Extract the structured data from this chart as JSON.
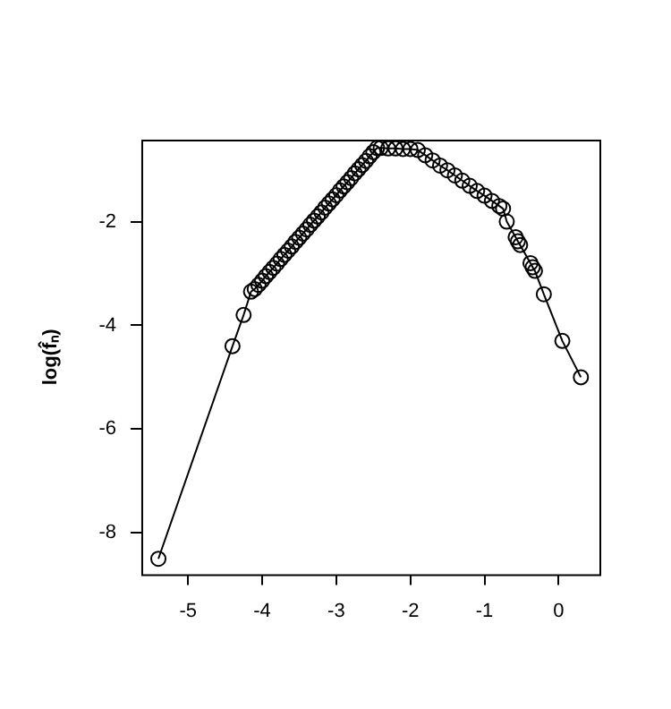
{
  "chart_data": {
    "type": "line",
    "ylabel": "log(f̂ₙ)",
    "marker": "circle",
    "line_style": "solid",
    "grid": false,
    "legend": false,
    "xlim": [
      -5.63,
      0.55
    ],
    "ylim": [
      -8.8,
      -0.42
    ],
    "xticks": [
      -5,
      -4,
      -3,
      -2,
      -1,
      0
    ],
    "yticks": [
      -8,
      -6,
      -4,
      -2
    ],
    "series": [
      {
        "color": "#000000",
        "x": [
          -5.4,
          -4.4,
          -4.25,
          -4.15,
          -4.1,
          -4.05,
          -4.0,
          -3.95,
          -3.9,
          -3.85,
          -3.8,
          -3.75,
          -3.7,
          -3.65,
          -3.6,
          -3.55,
          -3.5,
          -3.45,
          -3.4,
          -3.35,
          -3.3,
          -3.25,
          -3.2,
          -3.15,
          -3.1,
          -3.05,
          -3.0,
          -2.95,
          -2.9,
          -2.85,
          -2.8,
          -2.75,
          -2.7,
          -2.65,
          -2.6,
          -2.55,
          -2.5,
          -2.45,
          -2.4,
          -2.3,
          -2.2,
          -2.1,
          -2.0,
          -1.9,
          -1.8,
          -1.7,
          -1.6,
          -1.5,
          -1.4,
          -1.3,
          -1.2,
          -1.1,
          -1.0,
          -0.9,
          -0.8,
          -0.75,
          -0.7,
          -0.58,
          -0.55,
          -0.52,
          -0.38,
          -0.35,
          -0.32,
          -0.2,
          0.05,
          0.3
        ],
        "values": [
          -8.5,
          -4.4,
          -3.8,
          -3.35,
          -3.3,
          -3.22,
          -3.14,
          -3.05,
          -2.97,
          -2.89,
          -2.81,
          -2.72,
          -2.64,
          -2.56,
          -2.48,
          -2.39,
          -2.31,
          -2.23,
          -2.15,
          -2.06,
          -1.98,
          -1.9,
          -1.82,
          -1.73,
          -1.65,
          -1.57,
          -1.49,
          -1.4,
          -1.32,
          -1.24,
          -1.16,
          -1.07,
          -0.99,
          -0.91,
          -0.83,
          -0.74,
          -0.66,
          -0.58,
          -0.58,
          -0.59,
          -0.59,
          -0.6,
          -0.6,
          -0.62,
          -0.72,
          -0.82,
          -0.92,
          -1.01,
          -1.11,
          -1.21,
          -1.31,
          -1.41,
          -1.5,
          -1.6,
          -1.7,
          -1.75,
          -2.0,
          -2.3,
          -2.38,
          -2.45,
          -2.8,
          -2.88,
          -2.95,
          -3.4,
          -4.3,
          -5.0
        ]
      }
    ]
  }
}
